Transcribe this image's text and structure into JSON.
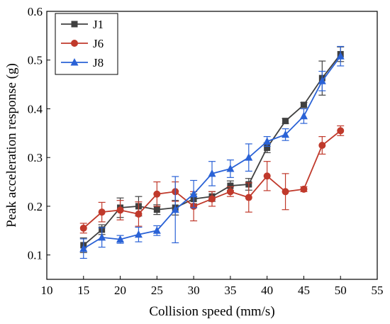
{
  "chart_data": {
    "type": "line",
    "xlabel": "Collision speed (mm/s)",
    "ylabel": "Peak acceleration response (g)",
    "xlim": [
      10,
      55
    ],
    "ylim": [
      0.05,
      0.6
    ],
    "xticks": [
      10,
      15,
      20,
      25,
      30,
      35,
      40,
      45,
      50,
      55
    ],
    "yticks": [
      0.1,
      0.2,
      0.3,
      0.4,
      0.5,
      0.6
    ],
    "xtick_labels": [
      "10",
      "15",
      "20",
      "25",
      "30",
      "35",
      "40",
      "45",
      "50",
      "55"
    ],
    "ytick_labels": [
      "0.1",
      "0.2",
      "0.3",
      "0.4",
      "0.5",
      "0.6"
    ],
    "grid": false,
    "legend_position": "top-left",
    "series": [
      {
        "name": "J1",
        "color": "#404040",
        "marker": "square",
        "x": [
          15,
          17.5,
          20,
          22.5,
          25,
          27.5,
          30,
          32.5,
          35,
          37.5,
          40,
          42.5,
          45,
          47.5,
          50
        ],
        "y": [
          0.12,
          0.152,
          0.197,
          0.2,
          0.193,
          0.197,
          0.215,
          0.22,
          0.242,
          0.245,
          0.32,
          0.375,
          0.408,
          0.463,
          0.512
        ],
        "err": [
          0.015,
          0.01,
          0.02,
          0.02,
          0.01,
          0.015,
          0.01,
          0.01,
          0.01,
          0.012,
          0.01,
          0.005,
          0.005,
          0.035,
          0.015
        ]
      },
      {
        "name": "J6",
        "color": "#c0392b",
        "marker": "circle",
        "x": [
          15,
          17.5,
          20,
          22.5,
          25,
          27.5,
          30,
          32.5,
          35,
          37.5,
          40,
          42.5,
          45,
          47.5,
          50
        ],
        "y": [
          0.155,
          0.188,
          0.192,
          0.184,
          0.225,
          0.23,
          0.2,
          0.215,
          0.23,
          0.218,
          0.262,
          0.23,
          0.235,
          0.325,
          0.355
        ],
        "err": [
          0.01,
          0.02,
          0.02,
          0.025,
          0.025,
          0.02,
          0.03,
          0.015,
          0.01,
          0.03,
          0.03,
          0.037,
          0.005,
          0.018,
          0.01
        ]
      },
      {
        "name": "J8",
        "color": "#2a62d6",
        "marker": "triangle",
        "x": [
          15,
          17.5,
          20,
          22.5,
          25,
          27.5,
          30,
          32.5,
          35,
          37.5,
          40,
          42.5,
          45,
          47.5,
          50
        ],
        "y": [
          0.113,
          0.136,
          0.132,
          0.142,
          0.15,
          0.193,
          0.225,
          0.267,
          0.277,
          0.3,
          0.333,
          0.347,
          0.385,
          0.457,
          0.508
        ],
        "err": [
          0.02,
          0.02,
          0.008,
          0.015,
          0.01,
          0.068,
          0.028,
          0.025,
          0.018,
          0.028,
          0.01,
          0.012,
          0.015,
          0.02,
          0.02
        ]
      }
    ]
  }
}
